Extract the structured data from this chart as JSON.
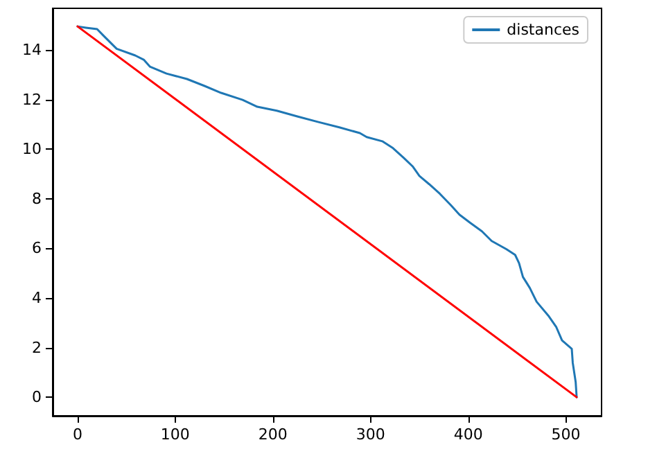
{
  "chart_data": {
    "type": "line",
    "xlim": [
      -25.5,
      536.5
    ],
    "ylim": [
      -0.75,
      15.68
    ],
    "xticks": [
      0,
      100,
      200,
      300,
      400,
      500
    ],
    "yticks": [
      0,
      2,
      4,
      6,
      8,
      10,
      12,
      14
    ],
    "grid": false,
    "legend": "top right",
    "marker": "none",
    "line_style": "solid",
    "series": [
      {
        "name": "distances",
        "color": "#1f77b4",
        "x": [
          0,
          8.5,
          20,
          27,
          40,
          59,
          68,
          74,
          91,
          112,
          130,
          147,
          169,
          184,
          204,
          225,
          246,
          268,
          289,
          296,
          312,
          323,
          334,
          343,
          350,
          360,
          371,
          382,
          391,
          402,
          414,
          424,
          439,
          448,
          452,
          456,
          463,
          470,
          482,
          490,
          496,
          506,
          507,
          510,
          511
        ],
        "values": [
          14.95,
          14.9,
          14.84,
          14.56,
          14.05,
          13.78,
          13.6,
          13.33,
          13.05,
          12.83,
          12.55,
          12.27,
          11.99,
          11.71,
          11.55,
          11.32,
          11.1,
          10.88,
          10.65,
          10.49,
          10.32,
          10.04,
          9.65,
          9.31,
          8.92,
          8.59,
          8.2,
          7.75,
          7.36,
          7.03,
          6.69,
          6.3,
          5.97,
          5.74,
          5.41,
          4.85,
          4.41,
          3.85,
          3.29,
          2.84,
          2.29,
          1.95,
          1.39,
          0.61,
          0
        ]
      },
      {
        "color": "#ff0000",
        "x": [
          0,
          511
        ],
        "values": [
          14.95,
          0
        ]
      }
    ]
  }
}
